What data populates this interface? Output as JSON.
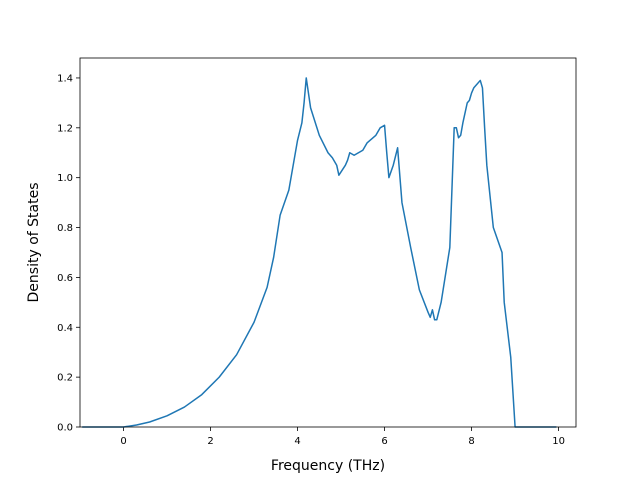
{
  "chart_data": {
    "type": "line",
    "title": "",
    "xlabel": "Frequency (THz)",
    "ylabel": "Density of States",
    "xlim": [
      -1.0,
      10.4
    ],
    "ylim": [
      0.0,
      1.48
    ],
    "x_ticks": [
      {
        "value": 0,
        "label": "0"
      },
      {
        "value": 2,
        "label": "2"
      },
      {
        "value": 4,
        "label": "4"
      },
      {
        "value": 6,
        "label": "6"
      },
      {
        "value": 8,
        "label": "8"
      },
      {
        "value": 10,
        "label": "10"
      }
    ],
    "y_ticks": [
      {
        "value": 0.0,
        "label": "0.0"
      },
      {
        "value": 0.2,
        "label": "0.2"
      },
      {
        "value": 0.4,
        "label": "0.4"
      },
      {
        "value": 0.6,
        "label": "0.6"
      },
      {
        "value": 0.8,
        "label": "0.8"
      },
      {
        "value": 1.0,
        "label": "1.0"
      },
      {
        "value": 1.2,
        "label": "1.2"
      },
      {
        "value": 1.4,
        "label": "1.4"
      }
    ],
    "grid": false,
    "legend": "none",
    "line_color": "#1f77b4",
    "series": [
      {
        "x": [
          -0.95,
          -0.5,
          0.0,
          0.3,
          0.6,
          1.0,
          1.4,
          1.8,
          2.2,
          2.6,
          3.0,
          3.3,
          3.45,
          3.6,
          3.8,
          4.0,
          4.1,
          4.15,
          4.2,
          4.3,
          4.5,
          4.7,
          4.8,
          4.9,
          4.95,
          5.1,
          5.15,
          5.2,
          5.3,
          5.4,
          5.5,
          5.6,
          5.8,
          5.9,
          6.0,
          6.05,
          6.1,
          6.2,
          6.3,
          6.4,
          6.6,
          6.8,
          7.0,
          7.05,
          7.1,
          7.15,
          7.2,
          7.3,
          7.5,
          7.6,
          7.65,
          7.7,
          7.75,
          7.8,
          7.9,
          7.95,
          8.0,
          8.05,
          8.1,
          8.2,
          8.25,
          8.3,
          8.35,
          8.5,
          8.7,
          8.75,
          8.9,
          9.0,
          9.1,
          9.5,
          9.95
        ],
        "y": [
          0.0,
          0.0,
          0.0,
          0.008,
          0.02,
          0.045,
          0.08,
          0.13,
          0.2,
          0.29,
          0.42,
          0.56,
          0.68,
          0.85,
          0.95,
          1.15,
          1.22,
          1.3,
          1.4,
          1.28,
          1.17,
          1.1,
          1.08,
          1.05,
          1.01,
          1.05,
          1.07,
          1.1,
          1.09,
          1.1,
          1.11,
          1.14,
          1.17,
          1.2,
          1.21,
          1.1,
          1.0,
          1.05,
          1.12,
          0.9,
          0.72,
          0.55,
          0.46,
          0.44,
          0.47,
          0.43,
          0.43,
          0.5,
          0.72,
          1.2,
          1.2,
          1.16,
          1.17,
          1.22,
          1.3,
          1.31,
          1.34,
          1.36,
          1.37,
          1.39,
          1.36,
          1.2,
          1.05,
          0.8,
          0.7,
          0.5,
          0.28,
          0.0,
          0.0,
          0.0,
          0.0
        ]
      }
    ]
  }
}
